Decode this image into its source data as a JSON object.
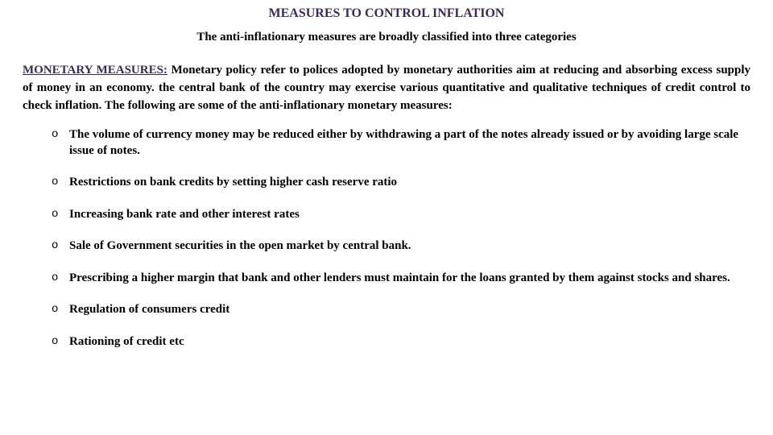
{
  "title": "MEASURES TO CONTROL INFLATION",
  "intro": "The anti-inflationary measures are broadly classified into three categories",
  "section": {
    "label": "MONETARY MEASURES:",
    "body": " Monetary policy refer to polices adopted by monetary authorities aim at reducing and absorbing excess supply of money in an economy. the central bank of the country  may exercise various quantitative and qualitative techniques of credit control  to check inflation. The following are some of the anti-inflationary monetary measures:"
  },
  "bullets": [
    " The volume of currency money  may be reduced either by withdrawing a part of the notes already issued or by avoiding large scale issue of notes.",
    " Restrictions on bank credits by setting higher cash reserve ratio",
    " Increasing bank rate and other interest rates",
    "Sale of Government  securities in the open market by central bank.",
    "Prescribing a higher margin that bank and other lenders must maintain for the loans granted by them against stocks and shares.",
    " Regulation of consumers credit",
    " Rationing of credit etc"
  ],
  "colors": {
    "heading": "#3a2a55",
    "text": "#000000",
    "background": "#ffffff"
  }
}
